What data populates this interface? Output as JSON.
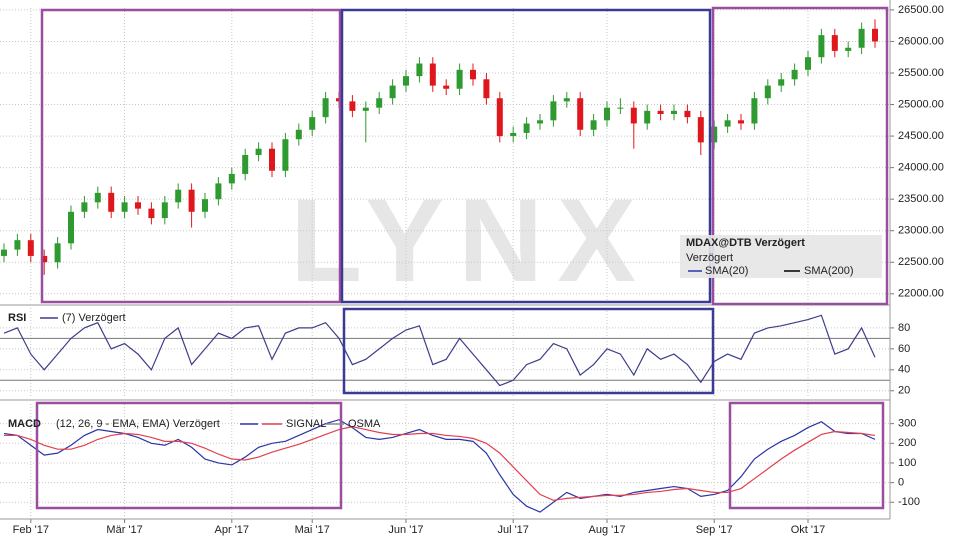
{
  "watermark": "LYNX",
  "chart_data": [
    {
      "type": "candlestick",
      "title": "MDAX@DTB Verzögert",
      "subtitle": "Verzögert",
      "legend_items": [
        "SMA(20)",
        "SMA(200)"
      ],
      "up_color": "#2f9a2f",
      "down_color": "#e0161d",
      "grid": true,
      "ylim": [
        21870,
        26530
      ],
      "yticks": [
        {
          "value": 22000,
          "label": "22000.00"
        },
        {
          "value": 22500,
          "label": "22500.00"
        },
        {
          "value": 23000,
          "label": "23000.00"
        },
        {
          "value": 23500,
          "label": "23500.00"
        },
        {
          "value": 24000,
          "label": "24000.00"
        },
        {
          "value": 24500,
          "label": "24500.00"
        },
        {
          "value": 25000,
          "label": "25000.00"
        },
        {
          "value": 25500,
          "label": "25500.00"
        },
        {
          "value": 26000,
          "label": "26000.00"
        },
        {
          "value": 26500,
          "label": "26500.00"
        }
      ],
      "open": [
        22600,
        22700,
        22850,
        22600,
        22500,
        22800,
        23300,
        23450,
        23600,
        23300,
        23450,
        23350,
        23200,
        23450,
        23650,
        23300,
        23500,
        23750,
        23900,
        24200,
        24300,
        23950,
        24450,
        24600,
        24800,
        25100,
        25050,
        24900,
        24950,
        25100,
        25300,
        25450,
        25650,
        25300,
        25250,
        25550,
        25400,
        25100,
        24500,
        24550,
        24700,
        24750,
        25050,
        25100,
        24600,
        24750,
        24950,
        24950,
        24700,
        24900,
        24850,
        24900,
        24800,
        24400,
        24650,
        24750,
        24700,
        25100,
        25300,
        25400,
        25550,
        25750,
        26100,
        25850,
        25900,
        26200
      ],
      "high": [
        22800,
        22950,
        22950,
        22700,
        22900,
        23400,
        23550,
        23700,
        23700,
        23550,
        23550,
        23450,
        23550,
        23750,
        23750,
        23600,
        23850,
        24000,
        24300,
        24400,
        24400,
        24550,
        24700,
        24900,
        25200,
        25200,
        25150,
        25050,
        25200,
        25400,
        25550,
        25750,
        25750,
        25400,
        25650,
        25650,
        25500,
        25200,
        24650,
        24800,
        24850,
        25150,
        25200,
        25200,
        24850,
        25050,
        25100,
        25050,
        25000,
        25000,
        25000,
        25000,
        24900,
        24750,
        24850,
        24850,
        25200,
        25400,
        25500,
        25650,
        25850,
        26200,
        26200,
        26000,
        26300,
        26350
      ],
      "low": [
        22500,
        22600,
        22500,
        22300,
        22400,
        22700,
        23200,
        23350,
        23200,
        23200,
        23250,
        23100,
        23100,
        23350,
        23050,
        23200,
        23400,
        23650,
        23800,
        24100,
        23850,
        23850,
        24350,
        24500,
        24700,
        24950,
        24800,
        24400,
        24850,
        25000,
        25200,
        25350,
        25200,
        25150,
        25150,
        25300,
        25000,
        24400,
        24400,
        24450,
        24600,
        24650,
        24950,
        24500,
        24500,
        24650,
        24850,
        24300,
        24600,
        24750,
        24750,
        24700,
        24200,
        24300,
        24550,
        24600,
        24600,
        25000,
        25200,
        25300,
        25450,
        25650,
        25750,
        25750,
        25800,
        25900
      ],
      "close": [
        22700,
        22850,
        22600,
        22500,
        22800,
        23300,
        23450,
        23600,
        23300,
        23450,
        23350,
        23200,
        23450,
        23650,
        23300,
        23500,
        23750,
        23900,
        24200,
        24300,
        23950,
        24450,
        24600,
        24800,
        25100,
        25050,
        24900,
        24950,
        25100,
        25300,
        25450,
        25650,
        25300,
        25250,
        25550,
        25400,
        25100,
        24500,
        24550,
        24700,
        24750,
        25050,
        25100,
        24600,
        24750,
        24950,
        24950,
        24700,
        24900,
        24850,
        24900,
        24800,
        24400,
        24650,
        24750,
        24700,
        25100,
        25300,
        25400,
        25550,
        25750,
        26100,
        25850,
        25900,
        26200,
        26000
      ]
    },
    {
      "type": "line",
      "title": "RSI",
      "grid": true,
      "ylim": [
        15,
        99
      ],
      "yticks": [
        20,
        40,
        60,
        80
      ],
      "levels": [
        70,
        30
      ],
      "series": [
        {
          "name": "(7) Verzögert",
          "color": "#3d3d8c",
          "values": [
            75,
            80,
            55,
            40,
            55,
            70,
            80,
            85,
            60,
            65,
            55,
            40,
            70,
            80,
            45,
            60,
            75,
            70,
            80,
            82,
            50,
            75,
            80,
            80,
            85,
            70,
            45,
            50,
            60,
            70,
            78,
            82,
            45,
            50,
            70,
            55,
            40,
            25,
            30,
            45,
            50,
            65,
            60,
            35,
            45,
            60,
            55,
            35,
            60,
            50,
            55,
            45,
            28,
            48,
            55,
            50,
            75,
            80,
            82,
            85,
            88,
            92,
            55,
            60,
            80,
            52
          ]
        }
      ]
    },
    {
      "type": "line",
      "title": "MACD",
      "grid": true,
      "ylim": [
        -180,
        400
      ],
      "yticks": [
        -100,
        0,
        100,
        200,
        300
      ],
      "legend_items": [
        "OSMA"
      ],
      "categories": [
        null,
        null,
        "Feb '17",
        null,
        null,
        null,
        null,
        null,
        null,
        "Mär '17",
        null,
        null,
        null,
        null,
        null,
        null,
        null,
        "Apr '17",
        null,
        null,
        null,
        null,
        null,
        "Mai '17",
        null,
        null,
        null,
        null,
        null,
        null,
        "Jun '17",
        null,
        null,
        null,
        null,
        null,
        null,
        null,
        "Jul '17",
        null,
        null,
        null,
        null,
        null,
        null,
        "Aug '17",
        null,
        null,
        null,
        null,
        null,
        null,
        null,
        "Sep '17",
        null,
        null,
        null,
        null,
        null,
        null,
        "Okt '17",
        null,
        null,
        null,
        null,
        null
      ],
      "series": [
        {
          "name": "(12, 26, 9 - EMA, EMA) Verzögert",
          "color": "#2a35a8",
          "values": [
            250,
            240,
            190,
            140,
            150,
            190,
            240,
            270,
            260,
            250,
            230,
            200,
            190,
            220,
            180,
            120,
            100,
            90,
            130,
            180,
            200,
            210,
            240,
            270,
            300,
            320,
            280,
            230,
            220,
            230,
            250,
            270,
            240,
            220,
            220,
            210,
            150,
            40,
            -60,
            -120,
            -150,
            -100,
            -50,
            -80,
            -70,
            -60,
            -70,
            -50,
            -40,
            -30,
            -20,
            -30,
            -70,
            -60,
            -40,
            30,
            120,
            170,
            210,
            240,
            280,
            310,
            260,
            250,
            250,
            220
          ]
        },
        {
          "name": "SIGNAL",
          "color": "#e2404f",
          "values": [
            240,
            240,
            220,
            190,
            170,
            170,
            190,
            220,
            240,
            250,
            245,
            230,
            210,
            210,
            200,
            175,
            145,
            120,
            115,
            130,
            155,
            175,
            195,
            220,
            245,
            270,
            285,
            270,
            255,
            245,
            245,
            250,
            250,
            240,
            235,
            225,
            200,
            150,
            80,
            10,
            -60,
            -90,
            -80,
            -75,
            -70,
            -65,
            -65,
            -60,
            -50,
            -45,
            -35,
            -30,
            -40,
            -50,
            -50,
            -30,
            20,
            70,
            120,
            165,
            205,
            245,
            260,
            255,
            250,
            240
          ]
        }
      ]
    }
  ]
}
